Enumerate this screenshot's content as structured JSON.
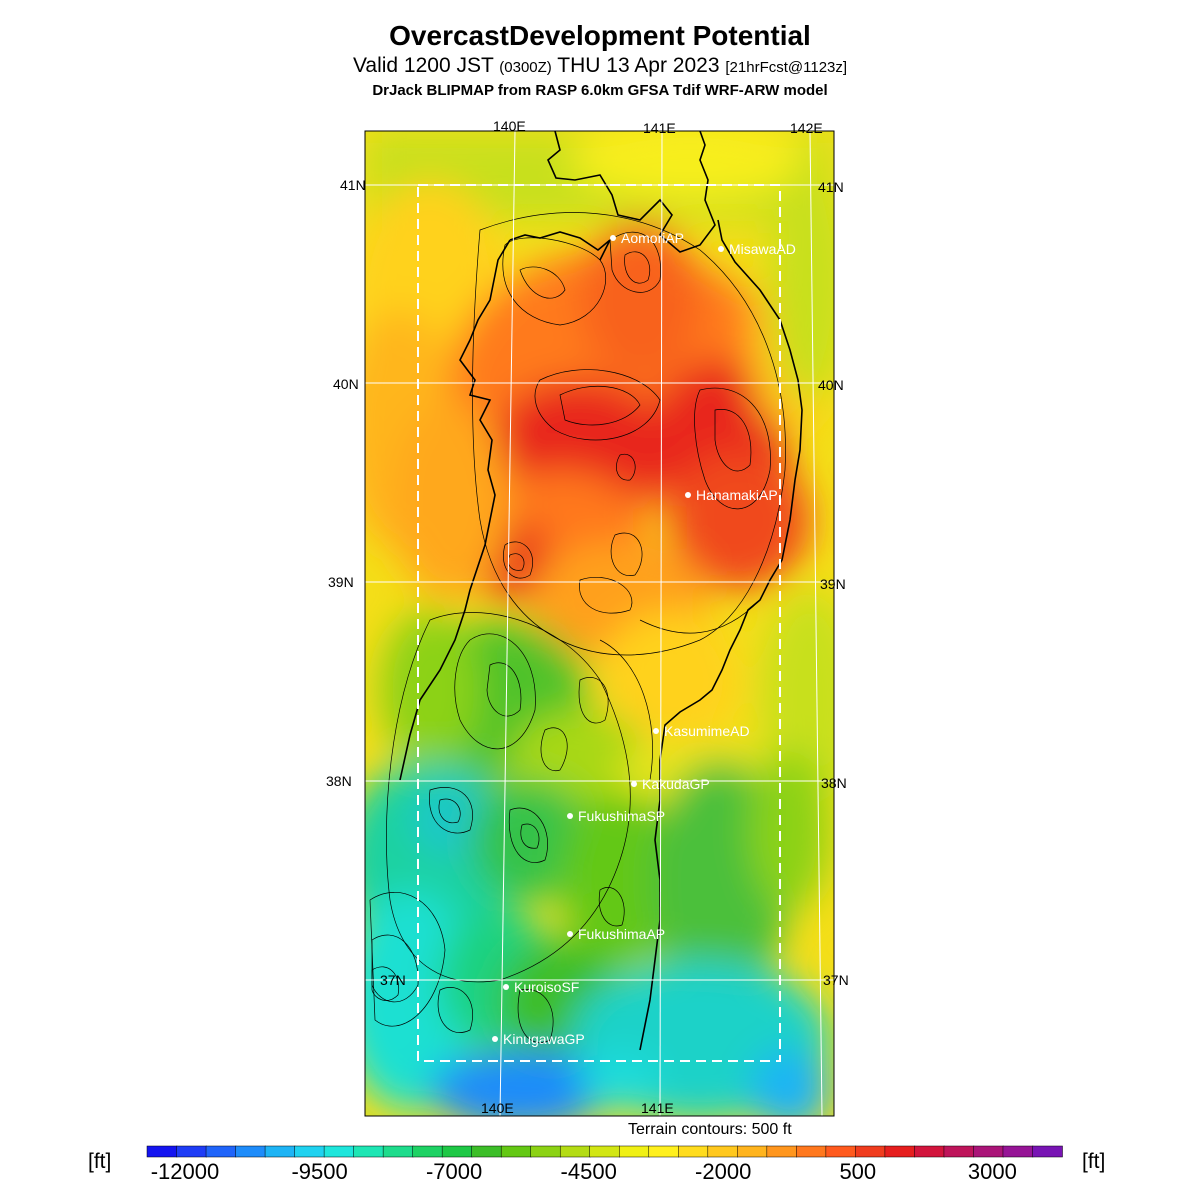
{
  "title": "OvercastDevelopment Potential",
  "subtitle": {
    "valid": "Valid 1200 JST",
    "utc": "(0300Z)",
    "date": "THU 13 Apr 2023",
    "fcst": "[21hrFcst@1123z]"
  },
  "model_line": "DrJack BLIPMAP from RASP 6.0km GFSA Tdif WRF-ARW model",
  "axes": {
    "lon_top": [
      "140E",
      "141E",
      "142E"
    ],
    "lon_bottom": [
      "140E",
      "141E"
    ],
    "lat_left": [
      "41N",
      "40N",
      "39N",
      "38N",
      "37N"
    ],
    "lat_right": [
      "41N",
      "40N",
      "39N",
      "38N",
      "37N"
    ]
  },
  "sites": [
    {
      "name": "AomoriAP"
    },
    {
      "name": "MisawaAD"
    },
    {
      "name": "HanamakiAP"
    },
    {
      "name": "KasumimeAD"
    },
    {
      "name": "KakudaGP"
    },
    {
      "name": "FukushimaSP"
    },
    {
      "name": "FukushimaAP"
    },
    {
      "name": "KuroisoSF"
    },
    {
      "name": "KinugawaGP"
    }
  ],
  "contour_note": "Terrain contours: 500 ft",
  "colorbar": {
    "unit_left": "[ft]",
    "unit_right": "[ft]",
    "ticks": [
      "-12000",
      "-9500",
      "-7000",
      "-4500",
      "-2000",
      "500",
      "3000"
    ],
    "colors": [
      "#1414f0",
      "#1e3cf6",
      "#1f64fa",
      "#1e8cfa",
      "#1eb4f5",
      "#1fd2f0",
      "#1ee6dc",
      "#1ee6b4",
      "#1edc8c",
      "#1ed264",
      "#1ec846",
      "#3cbe28",
      "#64c814",
      "#8cd214",
      "#b4dc14",
      "#d2e614",
      "#f0f014",
      "#fff01e",
      "#ffdc1e",
      "#ffc81e",
      "#ffb41e",
      "#ff961e",
      "#ff781e",
      "#ff5a1e",
      "#f03c1e",
      "#e61e1e",
      "#d2143c",
      "#be145a",
      "#aa1478",
      "#961496",
      "#7814b4"
    ]
  }
}
